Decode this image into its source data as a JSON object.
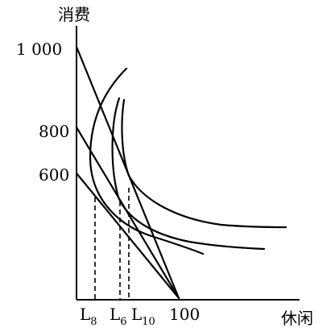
{
  "axes": {
    "y_label": "消费",
    "x_label": "休闲"
  },
  "y_ticks": [
    "1 000",
    "800",
    "600"
  ],
  "x_ticks": {
    "l8": {
      "main": "L",
      "sub": "8"
    },
    "l6": {
      "main": "L",
      "sub": "6"
    },
    "l10": {
      "main": "L",
      "sub": "10"
    },
    "hundred": "100"
  }
}
